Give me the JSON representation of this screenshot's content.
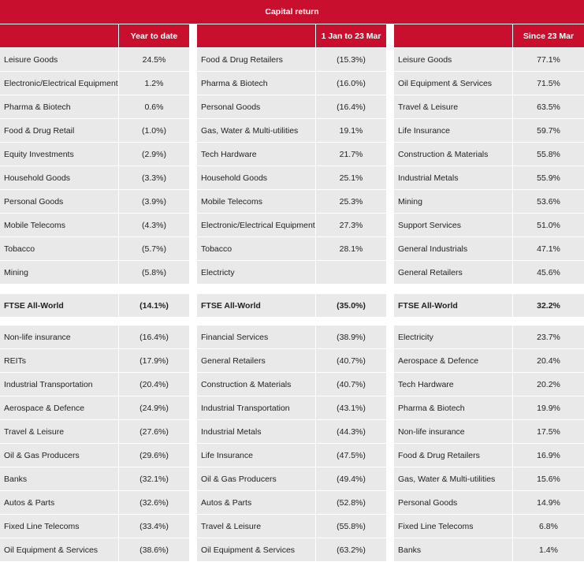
{
  "title": "Capital return",
  "columns": [
    {
      "header": "Year to date",
      "top": [
        [
          "Leisure Goods",
          "24.5%"
        ],
        [
          "Electronic/Electrical Equipment",
          "1.2%"
        ],
        [
          "Pharma & Biotech",
          "0.6%"
        ],
        [
          "Food & Drug Retail",
          "(1.0%)"
        ],
        [
          "Equity Investments",
          "(2.9%)"
        ],
        [
          "Household Goods",
          "(3.3%)"
        ],
        [
          "Personal Goods",
          "(3.9%)"
        ],
        [
          "Mobile Telecoms",
          "(4.3%)"
        ],
        [
          "Tobacco",
          "(5.7%)"
        ],
        [
          "Mining",
          "(5.8%)"
        ]
      ],
      "ftse": [
        "FTSE All-World",
        "(14.1%)"
      ],
      "bottom": [
        [
          "Non-life insurance",
          "(16.4%)"
        ],
        [
          "REITs",
          "(17.9%)"
        ],
        [
          "Industrial Transportation",
          "(20.4%)"
        ],
        [
          "Aerospace & Defence",
          "(24.9%)"
        ],
        [
          "Travel & Leisure",
          "(27.6%)"
        ],
        [
          "Oil & Gas Producers",
          "(29.6%)"
        ],
        [
          "Banks",
          "(32.1%)"
        ],
        [
          "Autos & Parts",
          "(32.6%)"
        ],
        [
          "Fixed Line Telecoms",
          "(33.4%)"
        ],
        [
          "Oil Equipment & Services",
          "(38.6%)"
        ]
      ]
    },
    {
      "header": "1 Jan to 23 Mar",
      "top": [
        [
          "Food & Drug Retailers",
          "(15.3%)"
        ],
        [
          "Pharma & Biotech",
          "(16.0%)"
        ],
        [
          "Personal Goods",
          "(16.4%)"
        ],
        [
          "Gas, Water & Multi-utilities",
          "19.1%"
        ],
        [
          "Tech Hardware",
          "21.7%"
        ],
        [
          "Household Goods",
          "25.1%"
        ],
        [
          "Mobile Telecoms",
          "25.3%"
        ],
        [
          "Electronic/Electrical Equipment",
          "27.3%"
        ],
        [
          "Tobacco",
          "28.1%"
        ],
        [
          "Electricty"
        ]
      ],
      "ftse": [
        "FTSE All-World",
        "(35.0%)"
      ],
      "bottom": [
        [
          "Financial Services",
          "(38.9%)"
        ],
        [
          "General Retailers",
          "(40.7%)"
        ],
        [
          "Construction & Materials",
          "(40.7%)"
        ],
        [
          "Industrial Transportation",
          "(43.1%)"
        ],
        [
          "Industrial Metals",
          "(44.3%)"
        ],
        [
          "Life Insurance",
          "(47.5%)"
        ],
        [
          "Oil & Gas Producers",
          "(49.4%)"
        ],
        [
          "Autos & Parts",
          "(52.8%)"
        ],
        [
          "Travel & Leisure",
          "(55.8%)"
        ],
        [
          "Oil Equipment & Services",
          "(63.2%)"
        ]
      ]
    },
    {
      "header": "Since 23 Mar",
      "top": [
        [
          "Leisure Goods",
          "77.1%"
        ],
        [
          "Oil Equipment & Services",
          "71.5%"
        ],
        [
          "Travel & Leisure",
          "63.5%"
        ],
        [
          "Life Insurance",
          "59.7%"
        ],
        [
          "Construction & Materials",
          "55.8%"
        ],
        [
          "Industrial Metals",
          "55.9%"
        ],
        [
          "Mining",
          "53.6%"
        ],
        [
          "Support Services",
          "51.0%"
        ],
        [
          "General Industrials",
          "47.1%"
        ],
        [
          "General Retailers",
          "45.6%"
        ]
      ],
      "ftse": [
        "FTSE All-World",
        "32.2%"
      ],
      "bottom": [
        [
          "Electricity",
          "23.7%"
        ],
        [
          "Aerospace & Defence",
          "20.4%"
        ],
        [
          "Tech Hardware",
          "20.2%"
        ],
        [
          "Pharma & Biotech",
          "19.9%"
        ],
        [
          "Non-life insurance",
          "17.5%"
        ],
        [
          "Food & Drug Retailers",
          "16.9%"
        ],
        [
          "Gas, Water & Multi-utilities",
          "15.6%"
        ],
        [
          "Personal Goods",
          "14.9%"
        ],
        [
          "Fixed Line Telecoms",
          "6.8%"
        ],
        [
          "Banks",
          "1.4%"
        ]
      ]
    }
  ]
}
